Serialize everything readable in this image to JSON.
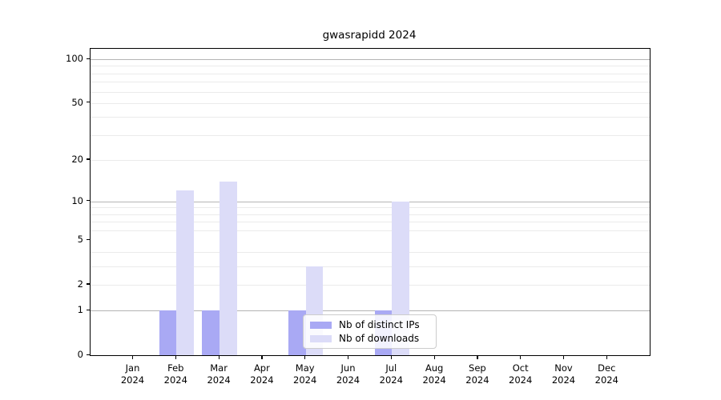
{
  "title": "gwasrapidd 2024",
  "chart_data": {
    "type": "bar",
    "categories": [
      "Jan 2024",
      "Feb 2024",
      "Mar 2024",
      "Apr 2024",
      "May 2024",
      "Jun 2024",
      "Jul 2024",
      "Aug 2024",
      "Sep 2024",
      "Oct 2024",
      "Nov 2024",
      "Dec 2024"
    ],
    "series": [
      {
        "name": "Nb of distinct IPs",
        "color": "#a9a9f4",
        "values": [
          0,
          1,
          1,
          0,
          1,
          0,
          1,
          0,
          0,
          0,
          0,
          0
        ]
      },
      {
        "name": "Nb of downloads",
        "color": "#dcdcf8",
        "values": [
          0,
          12,
          14,
          0,
          3,
          0,
          10,
          0,
          0,
          0,
          0,
          0
        ]
      }
    ],
    "title": "gwasrapidd 2024",
    "xlabel": "",
    "ylabel": "",
    "scale": "log1p",
    "ylim": [
      0,
      117
    ],
    "ylim_top_log10p": 2.075,
    "yticks": [
      0,
      1,
      2,
      5,
      10,
      20,
      50,
      100
    ],
    "gridlines_major": [
      1,
      10,
      100
    ],
    "gridlines_minor": [
      2,
      3,
      4,
      6,
      7,
      8,
      9,
      20,
      30,
      40,
      50,
      60,
      70,
      80,
      90
    ],
    "grid": true,
    "legend_position": "bottom-center"
  },
  "legend": {
    "items": [
      {
        "label": "Nb of distinct IPs"
      },
      {
        "label": "Nb of downloads"
      }
    ]
  }
}
